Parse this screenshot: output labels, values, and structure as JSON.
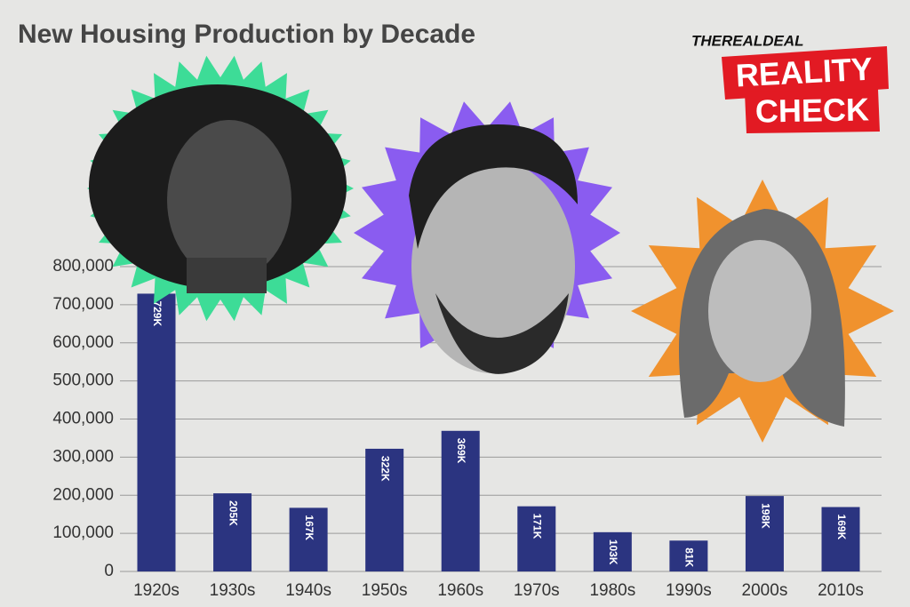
{
  "chart_data": {
    "type": "bar",
    "title": "New Housing Production by Decade",
    "categories": [
      "1920s",
      "1930s",
      "1940s",
      "1950s",
      "1960s",
      "1970s",
      "1980s",
      "1990s",
      "2000s",
      "2010s"
    ],
    "values": [
      729000,
      205000,
      167000,
      322000,
      369000,
      171000,
      103000,
      81000,
      198000,
      169000
    ],
    "value_labels": [
      "729K",
      "205K",
      "167K",
      "322K",
      "369K",
      "171K",
      "103K",
      "81K",
      "198K",
      "169K"
    ],
    "color": "#2b3480",
    "ylim": [
      0,
      800000
    ],
    "yticks": [
      0,
      {
        "value": 100000,
        "label": "100,000"
      },
      {
        "value": 200000,
        "label": "200,000"
      },
      {
        "value": 300000,
        "label": "300,000"
      },
      {
        "value": 400000,
        "label": "400,000"
      },
      {
        "value": 500000,
        "label": "500,000"
      },
      {
        "value": 600000,
        "label": "600,000"
      },
      {
        "value": 700000,
        "label": "700,000"
      },
      {
        "value": 800000,
        "label": "800,000"
      }
    ],
    "grid": true
  },
  "brand": {
    "name": "THEREALDEAL",
    "badge": [
      "REALITY",
      "CHECK"
    ]
  }
}
